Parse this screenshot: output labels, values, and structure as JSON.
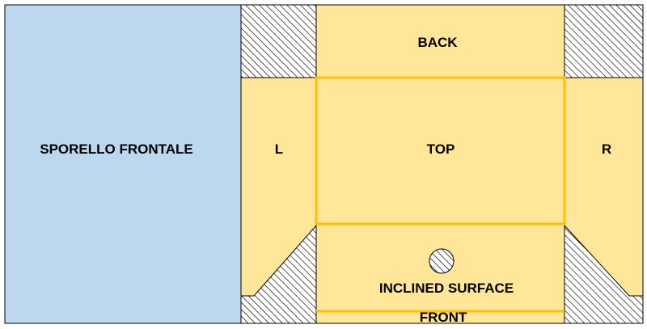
{
  "labels": {
    "front_door": "SPORELLO FRONTALE",
    "back": "BACK",
    "left": "L",
    "top": "TOP",
    "right": "R",
    "inclined_surface": "INCLINED SURFACE",
    "front": "FRONT"
  },
  "colors": {
    "door_fill": "#bdd7ee",
    "panel_fill": "#ffe699",
    "highlight": "#ffc000",
    "outline": "#000000",
    "hatch": "#000000",
    "hole_fill": "#d9d9d9"
  }
}
